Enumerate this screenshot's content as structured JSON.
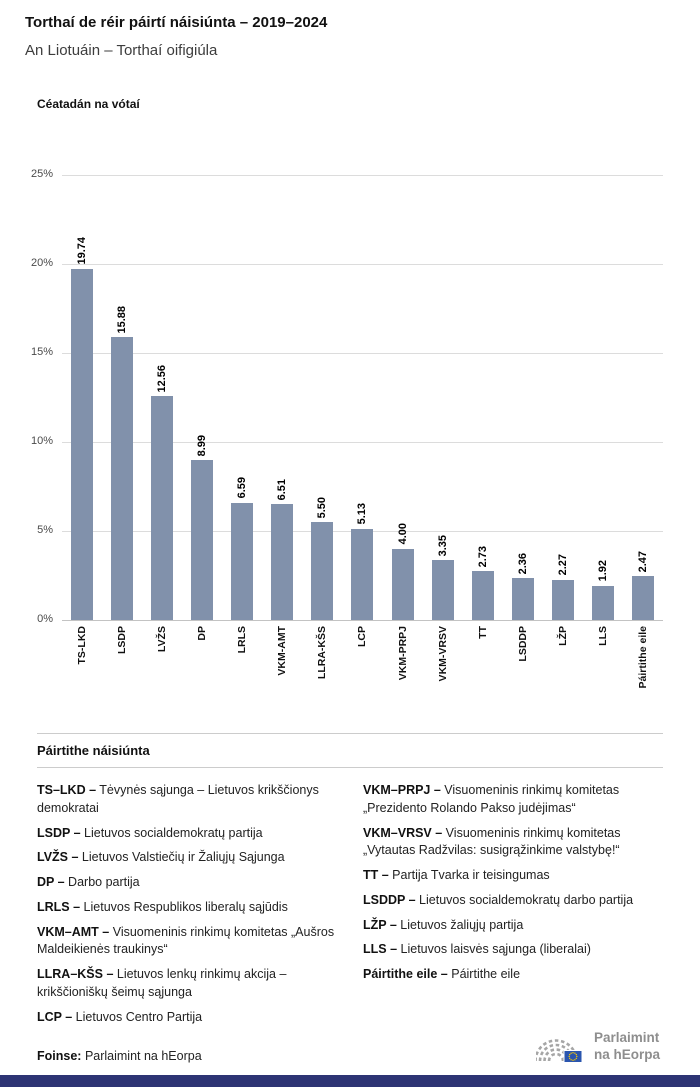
{
  "header": {
    "title": "Torthaí de réir páirtí náisiúnta – 2019–2024",
    "subtitle": "An Liotuáin – Torthaí oifigiúla"
  },
  "chart_data": {
    "type": "bar",
    "title": "Céatadán na vótaí",
    "categories": [
      "TS-LKD",
      "LSDP",
      "LVŽS",
      "DP",
      "LRLS",
      "VKM-AMT",
      "LLRA-KŠS",
      "LCP",
      "VKM-PRPJ",
      "VKM-VRSV",
      "TT",
      "LSDDP",
      "LŽP",
      "LLS",
      "Páirtithe eile"
    ],
    "values": [
      19.74,
      15.88,
      12.56,
      8.99,
      6.59,
      6.51,
      5.5,
      5.13,
      4.0,
      3.35,
      2.73,
      2.36,
      2.27,
      1.92,
      2.47
    ],
    "value_label_decimals": 2,
    "ylim": [
      0,
      25
    ],
    "yticks": [
      0,
      5,
      10,
      15,
      20,
      25
    ],
    "ytick_labels": [
      "0%",
      "5%",
      "10%",
      "15%",
      "20%",
      "25%"
    ],
    "grid": true,
    "legend_position": "none",
    "bar_color": "#8191ab"
  },
  "legend": {
    "heading": "Páirtithe náisiúnta",
    "columns": [
      [
        {
          "abbr": "TS–LKD –",
          "name": "Tėvynės sąjunga – Lietuvos krikščionys demokratai"
        },
        {
          "abbr": "LSDP –",
          "name": "Lietuvos socialdemokratų partija"
        },
        {
          "abbr": "LVŽS –",
          "name": "Lietuvos Valstiečių ir Žaliųjų Sąjunga"
        },
        {
          "abbr": "DP –",
          "name": "Darbo partija"
        },
        {
          "abbr": "LRLS –",
          "name": "Lietuvos Respublikos liberalų sąjūdis"
        },
        {
          "abbr": "VKM–AMT –",
          "name": "Visuomeninis rinkimų komitetas „Aušros Maldeikienės traukinys“"
        },
        {
          "abbr": "LLRA–KŠS –",
          "name": "Lietuvos lenkų rinkimų akcija – krikščioniškų šeimų sąjunga"
        },
        {
          "abbr": "LCP –",
          "name": "Lietuvos Centro Partija"
        }
      ],
      [
        {
          "abbr": "VKM–PRPJ –",
          "name": "Visuomeninis rinkimų komitetas „Prezidento Rolando Pakso judėjimas“"
        },
        {
          "abbr": "VKM–VRSV –",
          "name": "Visuomeninis rinkimų komitetas „Vytautas Radžvilas: susigrąžinkime valstybę!“"
        },
        {
          "abbr": "TT –",
          "name": "Partija Tvarka ir teisingumas"
        },
        {
          "abbr": "LSDDP –",
          "name": "Lietuvos socialdemokratų darbo partija"
        },
        {
          "abbr": "LŽP –",
          "name": "Lietuvos žaliųjų partija"
        },
        {
          "abbr": "LLS –",
          "name": "Lietuvos laisvės sąjunga (liberalai)"
        },
        {
          "abbr": "Páirtithe eile –",
          "name": "Páirtithe eile"
        }
      ]
    ]
  },
  "footer": {
    "source_label": "Foinse:",
    "source_value": "Parlaimint na hEorpa",
    "logo_line1": "Parlaimint",
    "logo_line2": "na hEorpa"
  },
  "colors": {
    "bar": "#8191ab",
    "gridline": "#dcdcdc",
    "bottom_bar": "#2d3474",
    "logo_gray": "#8e8e8e",
    "flag_blue": "#2a55ae",
    "star_yellow": "#ffcc00"
  }
}
